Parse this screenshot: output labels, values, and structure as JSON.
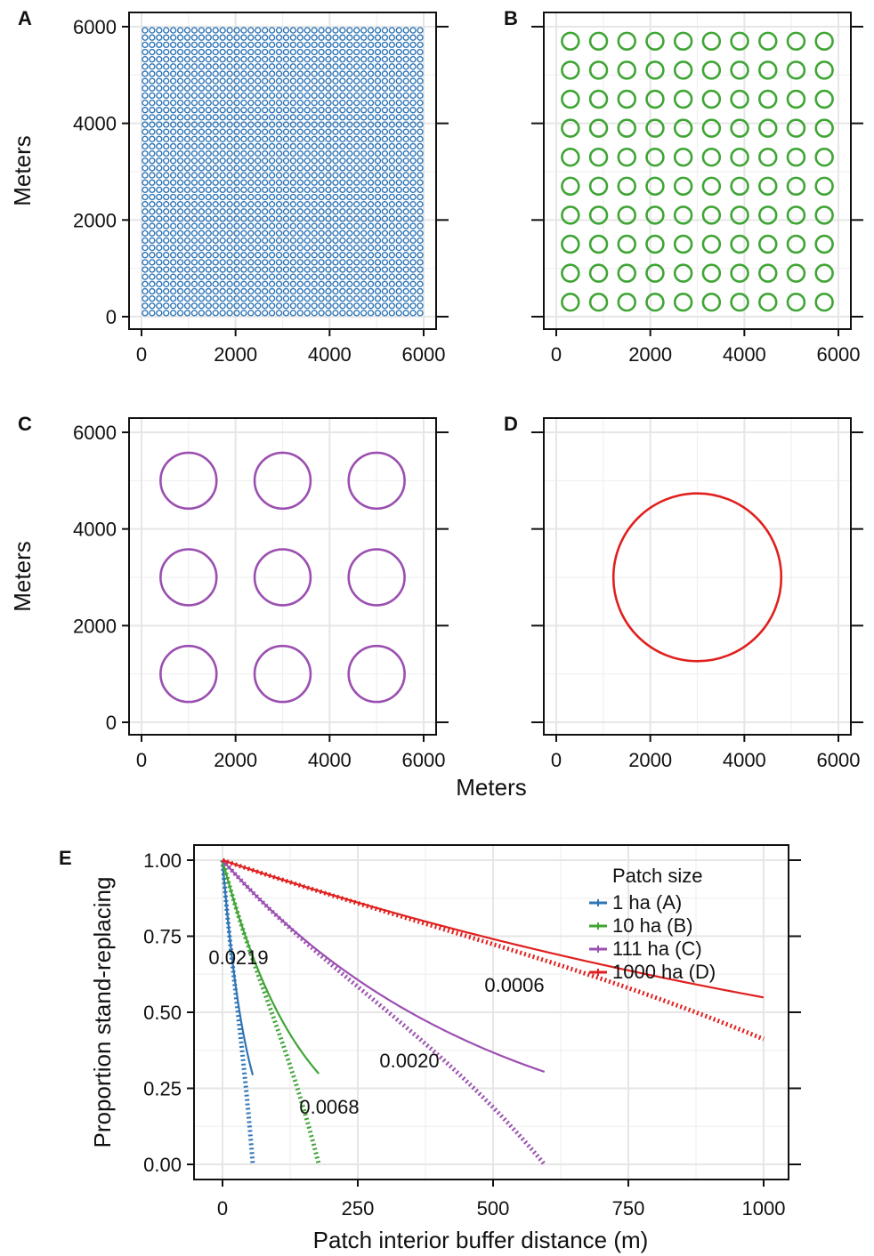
{
  "chart_data": [
    {
      "panel": "A",
      "type": "scatter",
      "ylabel": "Meters",
      "xlim": [
        0,
        6000
      ],
      "ylim": [
        0,
        6000
      ],
      "xticks": [
        "0",
        "2000",
        "4000",
        "6000"
      ],
      "yticks": [
        "0",
        "2000",
        "4000",
        "6000"
      ],
      "grid": true,
      "color": "#2e75b6",
      "patch_diameter_m": 113,
      "patches": {
        "count_x": 40,
        "count_y": 40,
        "start": 75,
        "spacing": 150
      }
    },
    {
      "panel": "B",
      "type": "scatter",
      "xlim": [
        0,
        6000
      ],
      "ylim": [
        0,
        6000
      ],
      "xticks": [
        "0",
        "2000",
        "4000",
        "6000"
      ],
      "grid": true,
      "color": "#3fa535",
      "patch_diameter_m": 357,
      "patches": {
        "count_x": 10,
        "count_y": 10,
        "start": 300,
        "spacing": 600
      }
    },
    {
      "panel": "C",
      "type": "scatter",
      "ylabel": "Meters",
      "xlim": [
        0,
        6000
      ],
      "ylim": [
        0,
        6000
      ],
      "xticks": [
        "0",
        "2000",
        "4000",
        "6000"
      ],
      "yticks": [
        "0",
        "2000",
        "4000",
        "6000"
      ],
      "grid": true,
      "color": "#9b4fb0",
      "patch_diameter_m": 1190,
      "patches": {
        "count_x": 3,
        "count_y": 3,
        "start": 1000,
        "spacing": 2000
      }
    },
    {
      "panel": "D",
      "type": "scatter",
      "xlim": [
        0,
        6000
      ],
      "ylim": [
        0,
        6000
      ],
      "xticks": [
        "0",
        "2000",
        "4000",
        "6000"
      ],
      "grid": true,
      "color": "#e0201f",
      "patch_diameter_m": 3570,
      "patches": {
        "count_x": 1,
        "count_y": 1,
        "start": 3000,
        "spacing": 0
      }
    },
    {
      "panel": "E",
      "type": "line",
      "xlabel": "Patch interior buffer distance (m)",
      "ylabel": "Proportion stand-replacing",
      "xlim": [
        0,
        1000
      ],
      "ylim": [
        0,
        1
      ],
      "xticks": [
        "0",
        "250",
        "500",
        "750",
        "1000"
      ],
      "yticks": [
        "0.00",
        "0.25",
        "0.50",
        "0.75",
        "1.00"
      ],
      "grid": true,
      "legend_title": "Patch size",
      "legend_position": "top-right",
      "series": [
        {
          "name": "1 ha (A)",
          "color": "#2e75b6",
          "rate": 0.0219,
          "rate_label": "0.0219",
          "max_x": 56
        },
        {
          "name": "10 ha (B)",
          "color": "#3fa535",
          "rate": 0.0068,
          "rate_label": "0.0068",
          "max_x": 178
        },
        {
          "name": "111 ha (C)",
          "color": "#9b4fb0",
          "rate": 0.002,
          "rate_label": "0.0020",
          "max_x": 595
        },
        {
          "name": "1000 ha (D)",
          "color": "#e0201f",
          "rate": 0.0006,
          "rate_label": "0.0006",
          "max_x": 1000
        }
      ]
    }
  ],
  "shared_xlabel": "Meters"
}
